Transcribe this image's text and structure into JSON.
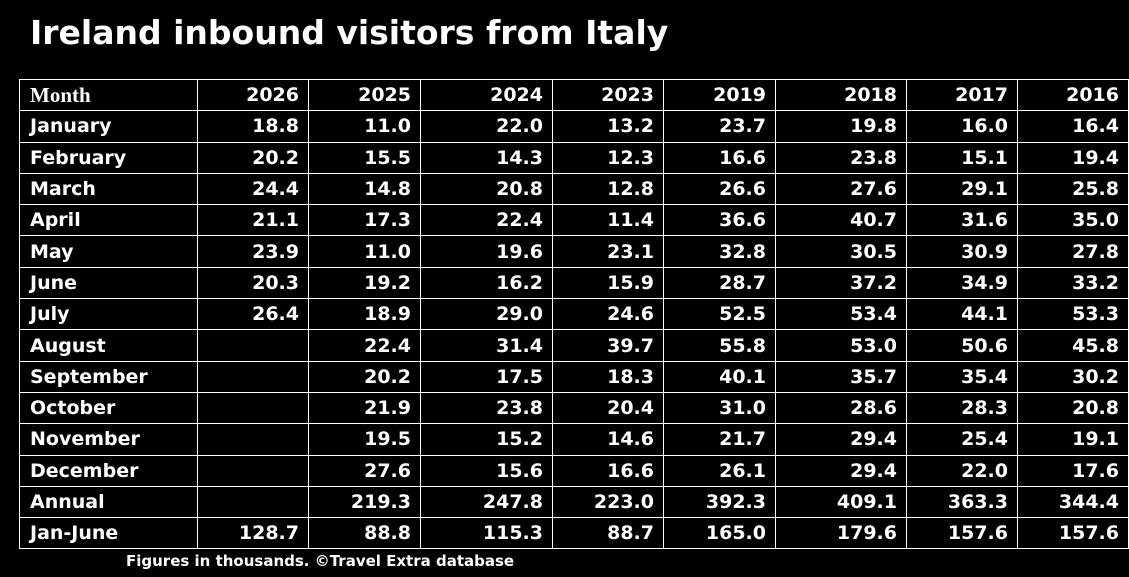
{
  "title": "Ireland inbound visitors from Italy",
  "footnote": "Figures in thousands. ©Travel Extra database",
  "chart_data": {
    "type": "table",
    "title": "Ireland inbound visitors from Italy",
    "columns": [
      "Month",
      "2026",
      "2025",
      "2024",
      "2023",
      "2019",
      "2018",
      "2017",
      "2016"
    ],
    "rows": [
      [
        "January",
        "18.8",
        "11.0",
        "22.0",
        "13.2",
        "23.7",
        "19.8",
        "16.0",
        "16.4"
      ],
      [
        "February",
        "20.2",
        "15.5",
        "14.3",
        "12.3",
        "16.6",
        "23.8",
        "15.1",
        "19.4"
      ],
      [
        "March",
        "24.4",
        "14.8",
        "20.8",
        "12.8",
        "26.6",
        "27.6",
        "29.1",
        "25.8"
      ],
      [
        "April",
        "21.1",
        "17.3",
        "22.4",
        "11.4",
        "36.6",
        "40.7",
        "31.6",
        "35.0"
      ],
      [
        "May",
        "23.9",
        "11.0",
        "19.6",
        "23.1",
        "32.8",
        "30.5",
        "30.9",
        "27.8"
      ],
      [
        "June",
        "20.3",
        "19.2",
        "16.2",
        "15.9",
        "28.7",
        "37.2",
        "34.9",
        "33.2"
      ],
      [
        "July",
        "26.4",
        "18.9",
        "29.0",
        "24.6",
        "52.5",
        "53.4",
        "44.1",
        "53.3"
      ],
      [
        "August",
        "",
        "22.4",
        "31.4",
        "39.7",
        "55.8",
        "53.0",
        "50.6",
        "45.8"
      ],
      [
        "September",
        "",
        "20.2",
        "17.5",
        "18.3",
        "40.1",
        "35.7",
        "35.4",
        "30.2"
      ],
      [
        "October",
        "",
        "21.9",
        "23.8",
        "20.4",
        "31.0",
        "28.6",
        "28.3",
        "20.8"
      ],
      [
        "November",
        "",
        "19.5",
        "15.2",
        "14.6",
        "21.7",
        "29.4",
        "25.4",
        "19.1"
      ],
      [
        "December",
        "",
        "27.6",
        "15.6",
        "16.6",
        "26.1",
        "29.4",
        "22.0",
        "17.6"
      ],
      [
        "Annual",
        "",
        "219.3",
        "247.8",
        "223.0",
        "392.3",
        "409.1",
        "363.3",
        "344.4"
      ],
      [
        "Jan-June",
        "128.7",
        "88.8",
        "115.3",
        "88.7",
        "165.0",
        "179.6",
        "157.6",
        "157.6"
      ]
    ],
    "note": "Figures in thousands. ©Travel Extra database"
  }
}
